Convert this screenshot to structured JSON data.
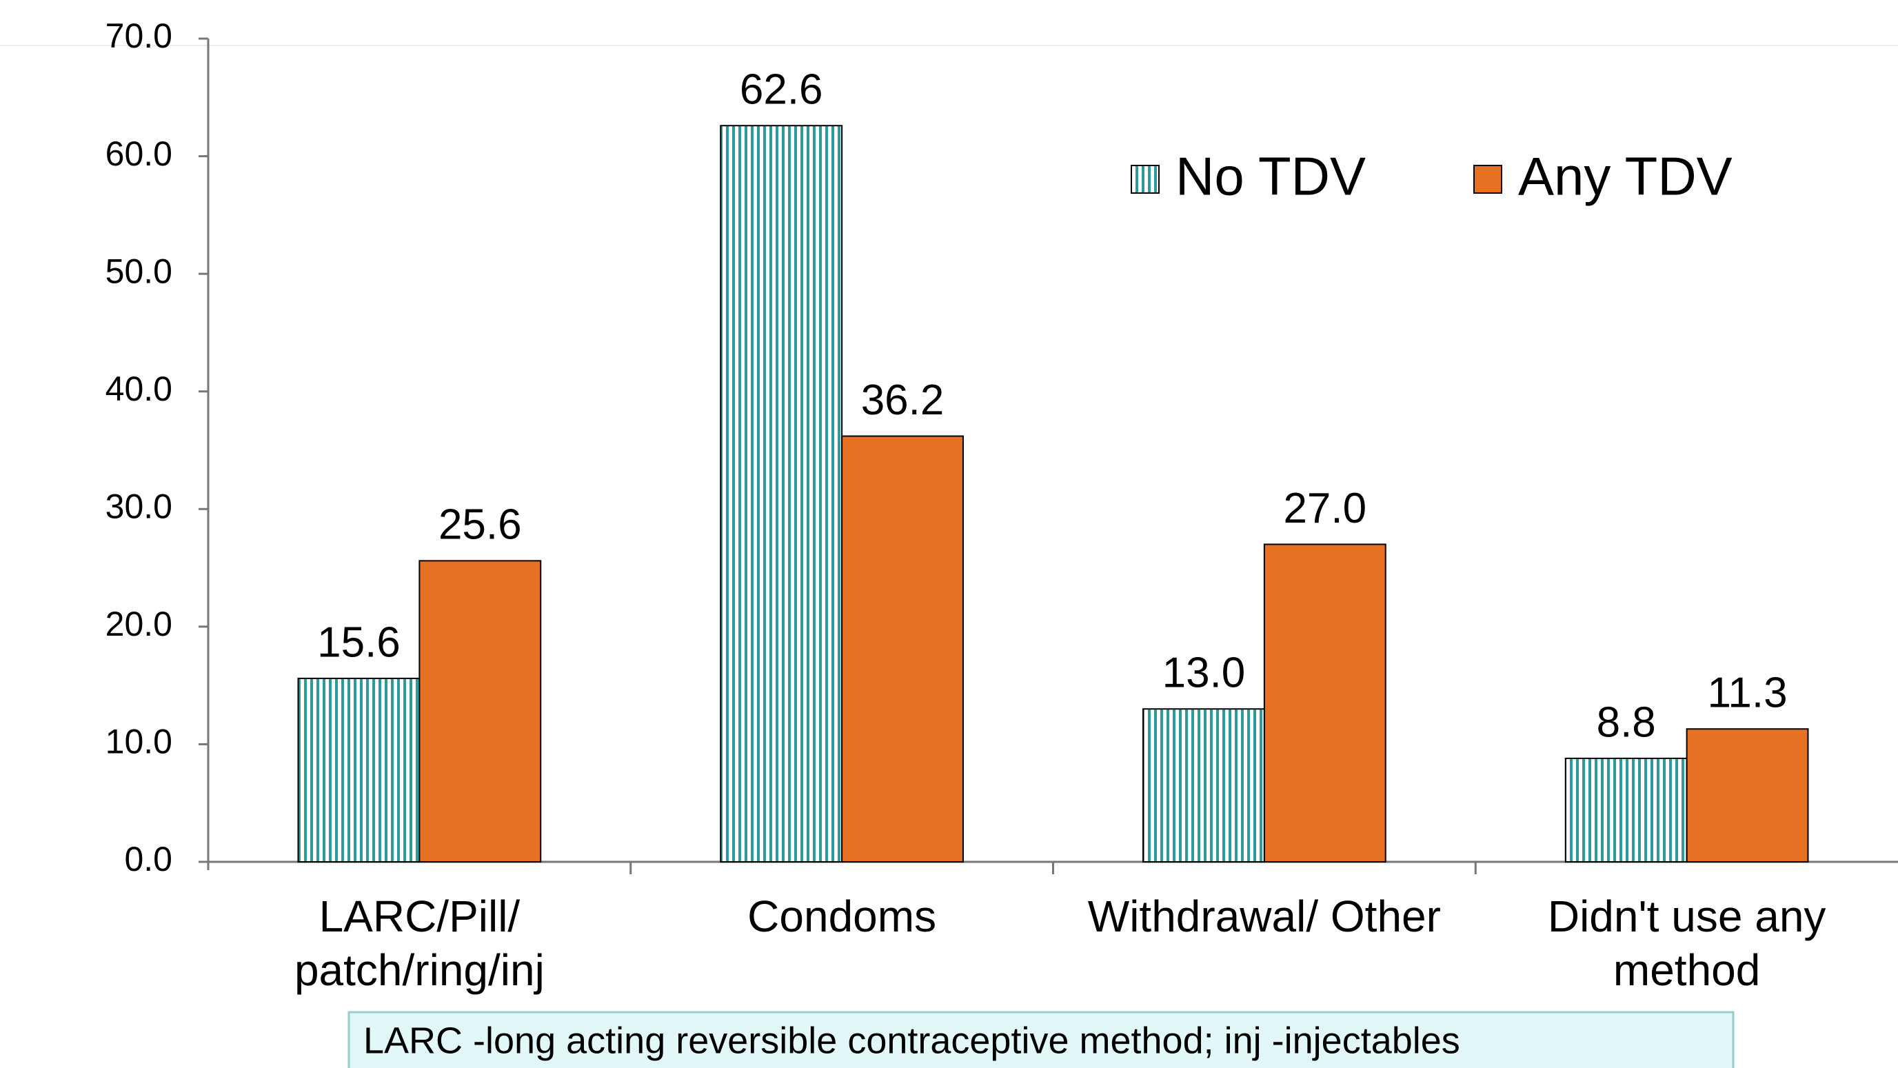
{
  "chart_data": {
    "type": "bar",
    "categories": [
      [
        "LARC/Pill/",
        "patch/ring/inj"
      ],
      [
        "Condoms"
      ],
      [
        "Withdrawal/ Other"
      ],
      [
        "Didn't use any",
        "method"
      ]
    ],
    "series": [
      {
        "name": "No TDV",
        "color": "#2e9b9b",
        "values": [
          15.6,
          62.6,
          13.0,
          8.8
        ],
        "value_labels": [
          "15.6",
          "62.6",
          "13.0",
          "8.8"
        ]
      },
      {
        "name": "Any TDV",
        "color": "#e87022",
        "values": [
          25.6,
          36.2,
          27.0,
          11.3
        ],
        "value_labels": [
          "25.6",
          "36.2",
          "27.0",
          "11.3"
        ]
      }
    ],
    "ylim": [
      0,
      70
    ],
    "yticks": [
      {
        "value": 0,
        "label": "0.0"
      },
      {
        "value": 10,
        "label": "10.0"
      },
      {
        "value": 20,
        "label": "20.0"
      },
      {
        "value": 30,
        "label": "30.0"
      },
      {
        "value": 40,
        "label": "40.0"
      },
      {
        "value": 50,
        "label": "50.0"
      },
      {
        "value": 60,
        "label": "60.0"
      },
      {
        "value": 70,
        "label": "70.0"
      }
    ],
    "grid": false,
    "legend": "top-right",
    "footnote": "LARC -long acting reversible contraceptive method; inj -injectables"
  }
}
